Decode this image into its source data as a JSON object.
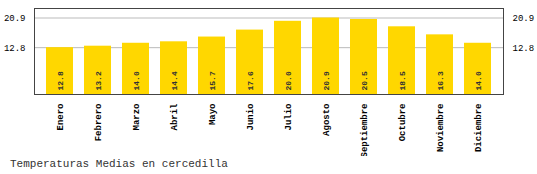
{
  "chart_data": {
    "type": "bar",
    "title": "Temperaturas Medias en cercedilla",
    "categories": [
      "Enero",
      "Febrero",
      "Marzo",
      "Abril",
      "Mayo",
      "Junio",
      "Julio",
      "Agosto",
      "Septiembre",
      "Octubre",
      "Noviembre",
      "Diciembre"
    ],
    "values": [
      12.8,
      13.2,
      14.0,
      14.4,
      15.7,
      17.6,
      20.0,
      20.9,
      20.5,
      18.5,
      16.3,
      14.0
    ],
    "value_labels": [
      "12.8",
      "13.2",
      "14.0",
      "14.4",
      "15.7",
      "17.6",
      "20.0",
      "20.9",
      "20.5",
      "18.5",
      "16.3",
      "14.0"
    ],
    "data_labels": true,
    "color": "#FFD700",
    "ylim": [
      0,
      23.5
    ],
    "yticks": [
      12.8,
      20.9
    ],
    "grid": true
  }
}
